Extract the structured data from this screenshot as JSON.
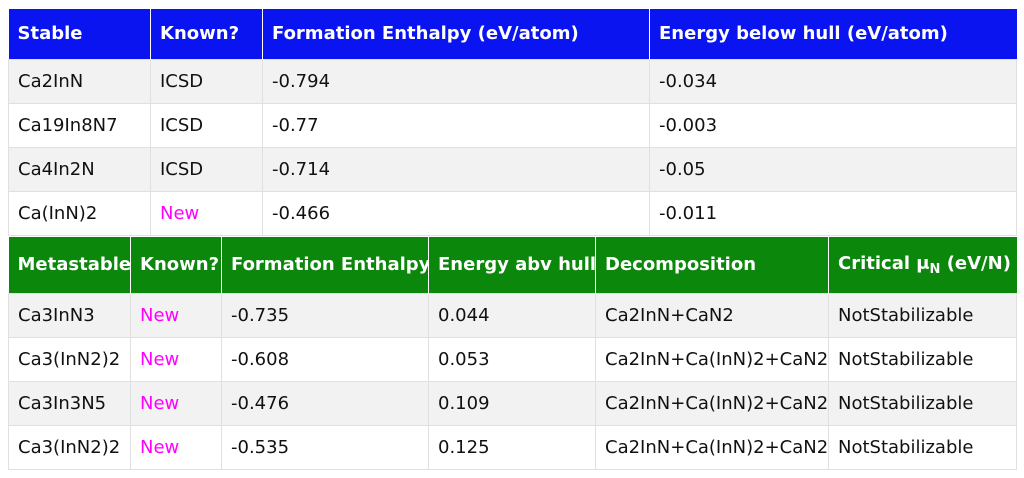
{
  "stable": {
    "headers": [
      "Stable",
      "Known?",
      "Formation Enthalpy (eV/atom)",
      "Energy below hull (eV/atom)"
    ],
    "rows": [
      {
        "compound": "Ca2InN",
        "known": "ICSD",
        "formation_enthalpy": "-0.794",
        "energy_below_hull": "-0.034"
      },
      {
        "compound": "Ca19In8N7",
        "known": "ICSD",
        "formation_enthalpy": "-0.77",
        "energy_below_hull": "-0.003"
      },
      {
        "compound": "Ca4In2N",
        "known": "ICSD",
        "formation_enthalpy": "-0.714",
        "energy_below_hull": "-0.05"
      },
      {
        "compound": "Ca(InN)2",
        "known": "New",
        "formation_enthalpy": "-0.466",
        "energy_below_hull": "-0.011"
      }
    ]
  },
  "metastable": {
    "headers": [
      "Metastable",
      "Known?",
      "Formation Enthalpy",
      "Energy abv hull",
      "Decomposition"
    ],
    "critical_header": {
      "prefix": "Critical μ",
      "sub": "N",
      "suffix": " (eV/N)"
    },
    "rows": [
      {
        "compound": "Ca3InN3",
        "known": "New",
        "formation_enthalpy": "-0.735",
        "energy_above_hull": "0.044",
        "decomposition": "Ca2InN+CaN2",
        "critical": "NotStabilizable"
      },
      {
        "compound": "Ca3(InN2)2",
        "known": "New",
        "formation_enthalpy": "-0.608",
        "energy_above_hull": "0.053",
        "decomposition": "Ca2InN+Ca(InN)2+CaN2",
        "critical": "NotStabilizable"
      },
      {
        "compound": "Ca3In3N5",
        "known": "New",
        "formation_enthalpy": "-0.476",
        "energy_above_hull": "0.109",
        "decomposition": "Ca2InN+Ca(InN)2+CaN2",
        "critical": "NotStabilizable"
      },
      {
        "compound": "Ca3(InN2)2",
        "known": "New",
        "formation_enthalpy": "-0.535",
        "energy_above_hull": "0.125",
        "decomposition": "Ca2InN+Ca(InN)2+CaN2",
        "critical": "NotStabilizable"
      }
    ]
  },
  "colors": {
    "stable_header": "#0a14f0",
    "metastable_header": "#0b870b",
    "new_label": "#ff00ff"
  }
}
